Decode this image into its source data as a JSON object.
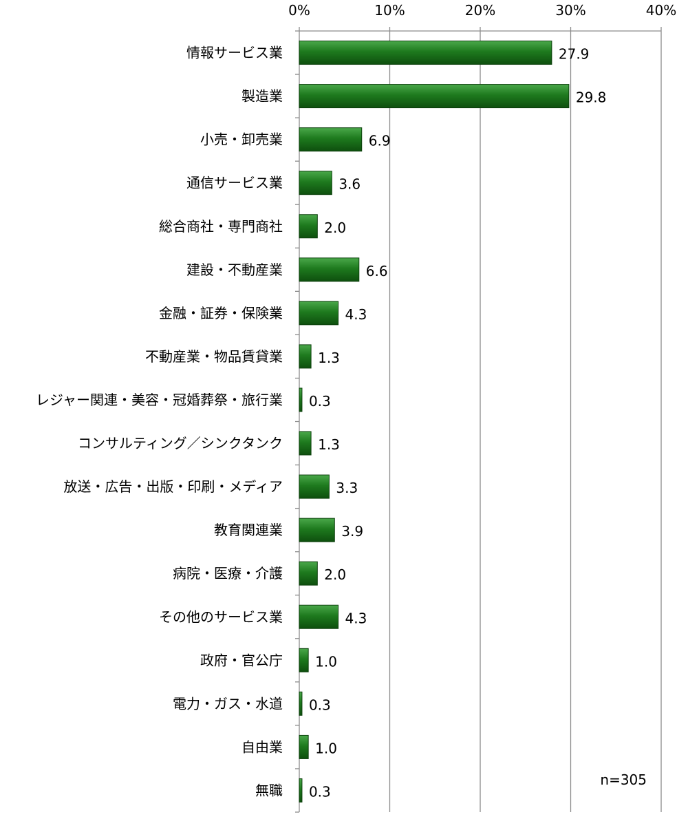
{
  "chart_data": {
    "type": "bar",
    "orientation": "horizontal",
    "categories": [
      "情報サービス業",
      "製造業",
      "小売・卸売業",
      "通信サービス業",
      "総合商社・専門商社",
      "建設・不動産業",
      "金融・証券・保険業",
      "不動産業・物品賃貸業",
      "レジャー関連・美容・冠婚葬祭・旅行業",
      "コンサルティング／シンクタンク",
      "放送・広告・出版・印刷・メディア",
      "教育関連業",
      "病院・医療・介護",
      "その他のサービス業",
      "政府・官公庁",
      "電力・ガス・水道",
      "自由業",
      "無職"
    ],
    "values": [
      27.9,
      29.8,
      6.9,
      3.6,
      2.0,
      6.6,
      4.3,
      1.3,
      0.3,
      1.3,
      3.3,
      3.9,
      2.0,
      4.3,
      1.0,
      0.3,
      1.0,
      0.3
    ],
    "value_labels": [
      "27.9",
      "29.8",
      "6.9",
      "3.6",
      "2.0",
      "6.6",
      "4.3",
      "1.3",
      "0.3",
      "1.3",
      "3.3",
      "3.9",
      "2.0",
      "4.3",
      "1.0",
      "0.3",
      "1.0",
      "0.3"
    ],
    "xlim": [
      0,
      40
    ],
    "x_ticks": [
      0,
      10,
      20,
      30,
      40
    ],
    "x_tick_labels": [
      "0%",
      "10%",
      "20%",
      "30%",
      "40%"
    ],
    "x_axis_position": "top",
    "grid": true,
    "bar_color": "#1e7a1e",
    "note": "n=305",
    "title": "",
    "xlabel": "",
    "ylabel": ""
  }
}
